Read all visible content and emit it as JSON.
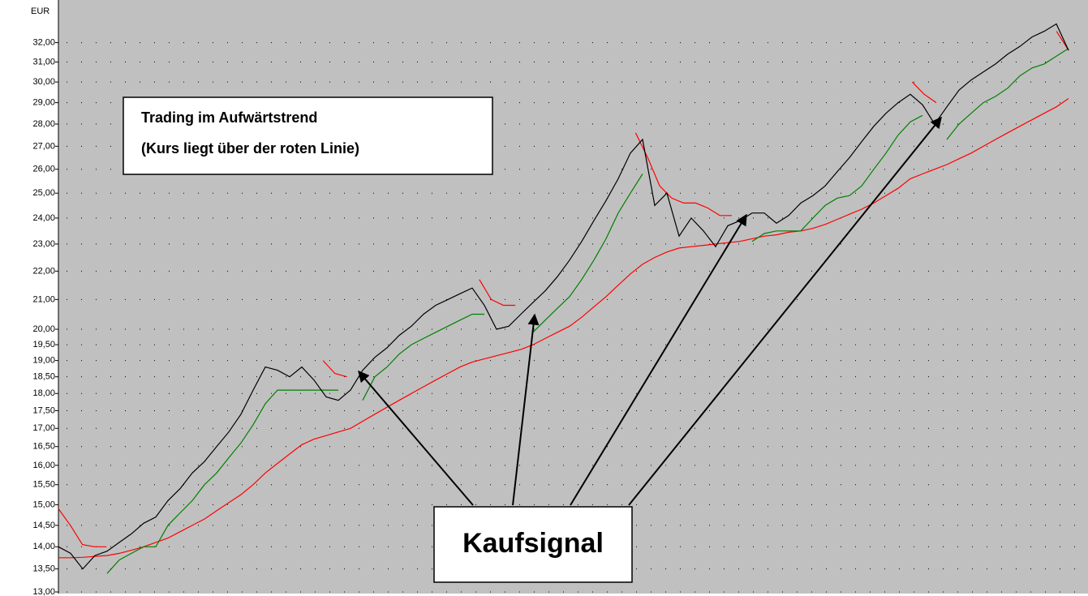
{
  "chart_data": {
    "type": "line",
    "ylabel": "EUR",
    "log_scale": true,
    "grid": true,
    "ylim": [
      13,
      34
    ],
    "yticks": [
      {
        "value": 13,
        "label": "13,00"
      },
      {
        "value": 13.5,
        "label": "13,50"
      },
      {
        "value": 14,
        "label": "14,00"
      },
      {
        "value": 14.5,
        "label": "14,50"
      },
      {
        "value": 15,
        "label": "15,00"
      },
      {
        "value": 15.5,
        "label": "15,50"
      },
      {
        "value": 16,
        "label": "16,00"
      },
      {
        "value": 16.5,
        "label": "16,50"
      },
      {
        "value": 17,
        "label": "17,00"
      },
      {
        "value": 17.5,
        "label": "17,50"
      },
      {
        "value": 18,
        "label": "18,00"
      },
      {
        "value": 18.5,
        "label": "18,50"
      },
      {
        "value": 19,
        "label": "19,00"
      },
      {
        "value": 19.5,
        "label": "19,50"
      },
      {
        "value": 20,
        "label": "20,00"
      },
      {
        "value": 21,
        "label": "21,00"
      },
      {
        "value": 22,
        "label": "22,00"
      },
      {
        "value": 23,
        "label": "23,00"
      },
      {
        "value": 24,
        "label": "24,00"
      },
      {
        "value": 25,
        "label": "25,00"
      },
      {
        "value": 26,
        "label": "26,00"
      },
      {
        "value": 27,
        "label": "27,00"
      },
      {
        "value": 28,
        "label": "28,00"
      },
      {
        "value": 29,
        "label": "29,00"
      },
      {
        "value": 30,
        "label": "30,00"
      },
      {
        "value": 31,
        "label": "31,00"
      },
      {
        "value": 32,
        "label": "32,00"
      }
    ],
    "annotations": [
      "Trading im Aufwärtstrend",
      "(Kurs liegt über der roten Linie)",
      "Kaufsignal"
    ],
    "series": [
      {
        "color": "#ff0000",
        "values": [
          13.75,
          13.75,
          13.76,
          13.78,
          13.8,
          13.85,
          13.92,
          14.0,
          14.1,
          14.2,
          14.35,
          14.5,
          14.65,
          14.85,
          15.05,
          15.25,
          15.5,
          15.8,
          16.05,
          16.3,
          16.55,
          16.7,
          16.8,
          16.9,
          17.0,
          17.2,
          17.4,
          17.6,
          17.8,
          18.0,
          18.2,
          18.4,
          18.6,
          18.8,
          18.95,
          19.05,
          19.15,
          19.25,
          19.35,
          19.5,
          19.7,
          19.9,
          20.1,
          20.4,
          20.75,
          21.1,
          21.5,
          21.9,
          22.25,
          22.5,
          22.7,
          22.85,
          22.9,
          22.95,
          23.0,
          23.05,
          23.1,
          23.2,
          23.3,
          23.35,
          23.45,
          23.5,
          23.6,
          23.75,
          23.95,
          24.15,
          24.35,
          24.6,
          24.9,
          25.2,
          25.6,
          25.8,
          26.0,
          26.2,
          26.45,
          26.7,
          27.0,
          27.3,
          27.6,
          27.9,
          28.2,
          28.5,
          28.8,
          29.2
        ]
      },
      {
        "color": "#008000",
        "values": [
          null,
          null,
          null,
          null,
          13.4,
          13.7,
          13.85,
          14.0,
          14.0,
          14.5,
          14.8,
          15.1,
          15.5,
          15.8,
          16.2,
          16.6,
          17.1,
          17.7,
          18.1,
          18.1,
          18.1,
          18.1,
          18.1,
          18.1,
          null,
          17.8,
          18.5,
          18.8,
          19.2,
          19.5,
          19.7,
          19.9,
          20.1,
          20.3,
          20.5,
          20.5,
          null,
          null,
          null,
          19.9,
          20.3,
          20.7,
          21.1,
          21.7,
          22.4,
          23.2,
          24.2,
          25.0,
          25.8,
          null,
          null,
          null,
          null,
          null,
          null,
          null,
          null,
          23.1,
          23.4,
          23.5,
          23.5,
          23.5,
          24.0,
          24.5,
          24.8,
          24.9,
          25.3,
          26.0,
          26.7,
          27.5,
          28.1,
          28.4,
          null,
          27.3,
          28.0,
          28.5,
          29.0,
          29.3,
          29.7,
          30.3,
          30.7,
          30.9,
          31.3,
          31.7
        ]
      },
      {
        "color": "#ff0000",
        "values": [
          14.9,
          14.5,
          14.05,
          14.0,
          14.0,
          null,
          null,
          null,
          null,
          null,
          null,
          null,
          null,
          null,
          null,
          null,
          null,
          null,
          null,
          null,
          null,
          null,
          19.0,
          18.6,
          18.5,
          null,
          null,
          null,
          null,
          null,
          null,
          null,
          null,
          null,
          null,
          21.7,
          21.0,
          20.8,
          20.8,
          null,
          null,
          null,
          null,
          null,
          null,
          null,
          null,
          null,
          27.6,
          26.5,
          25.3,
          24.8,
          24.6,
          24.6,
          24.4,
          24.1,
          24.1,
          null,
          null,
          null,
          null,
          null,
          null,
          null,
          null,
          null,
          null,
          null,
          null,
          null,
          null,
          30.0,
          29.4,
          29.0,
          null,
          null,
          null,
          null,
          null,
          null,
          null,
          null,
          null,
          32.6,
          31.6
        ]
      },
      {
        "color": "#000000",
        "values": [
          14.0,
          13.85,
          13.5,
          13.8,
          13.9,
          14.1,
          14.3,
          14.55,
          14.7,
          15.1,
          15.4,
          15.8,
          16.1,
          16.5,
          16.9,
          17.4,
          18.1,
          18.8,
          18.7,
          18.5,
          18.8,
          18.4,
          17.9,
          17.8,
          18.1,
          18.7,
          19.1,
          19.4,
          19.8,
          20.1,
          20.5,
          20.8,
          21.0,
          21.2,
          21.4,
          20.8,
          20.0,
          20.1,
          20.5,
          20.9,
          21.3,
          21.8,
          22.4,
          23.1,
          23.9,
          24.7,
          25.6,
          26.7,
          27.3,
          24.5,
          25.0,
          23.3,
          24.0,
          23.5,
          22.9,
          23.7,
          23.9,
          24.2,
          24.2,
          23.8,
          24.1,
          24.6,
          24.9,
          25.3,
          25.9,
          26.5,
          27.2,
          27.9,
          28.5,
          29.0,
          29.4,
          28.9,
          28.0,
          28.8,
          29.6,
          30.1,
          30.5,
          30.9,
          31.4,
          31.8,
          32.3,
          32.6,
          33.0,
          31.6
        ]
      }
    ]
  }
}
